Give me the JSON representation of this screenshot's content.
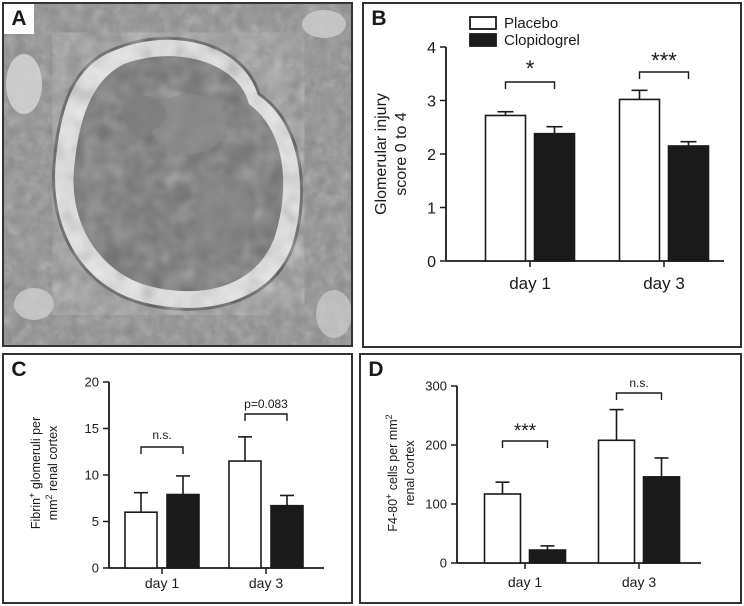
{
  "panels": [
    {
      "id": "A",
      "label": "A"
    },
    {
      "id": "B",
      "label": "B"
    },
    {
      "id": "C",
      "label": "C"
    },
    {
      "id": "D",
      "label": "D"
    }
  ],
  "legend": [
    "Placebo",
    "Clopidogrel"
  ],
  "colors": {
    "placebo": "#ffffff",
    "clopidogrel": "#1a1a1a",
    "axis": "#1a1a1a"
  },
  "image_description": "micrograph",
  "chart_data": [
    {
      "panel": "B",
      "type": "bar",
      "categories": [
        "day 1",
        "day 3"
      ],
      "series": [
        {
          "name": "Placebo",
          "values": [
            2.72,
            3.02
          ],
          "errors": [
            0.07,
            0.17
          ]
        },
        {
          "name": "Clopidogrel",
          "values": [
            2.38,
            2.15
          ],
          "errors": [
            0.13,
            0.08
          ]
        }
      ],
      "ylabel": [
        "Glomerular injury",
        "score 0 to 4"
      ],
      "ylim": [
        0,
        4
      ],
      "yticks": [
        "0",
        "1",
        "2",
        "3",
        "4"
      ],
      "legend_placement": "top-left",
      "annotations": [
        "*",
        "***"
      ]
    },
    {
      "panel": "C",
      "type": "bar",
      "categories": [
        "day 1",
        "day 3"
      ],
      "series": [
        {
          "name": "Placebo",
          "values": [
            6.0,
            11.5
          ],
          "errors": [
            2.1,
            2.6
          ]
        },
        {
          "name": "Clopidogrel",
          "values": [
            7.9,
            6.7
          ],
          "errors": [
            2.0,
            1.1
          ]
        }
      ],
      "ylabel_parts": [
        "Fibrin",
        "+",
        " glomeruli per",
        "mm",
        "2",
        " renal cortex"
      ],
      "ylim": [
        0,
        20
      ],
      "yticks": [
        "0",
        "5",
        "10",
        "15",
        "20"
      ],
      "annotations": [
        "n.s.",
        "p=0.083"
      ]
    },
    {
      "panel": "D",
      "type": "bar",
      "categories": [
        "day 1",
        "day 3"
      ],
      "series": [
        {
          "name": "Placebo",
          "values": [
            117,
            208
          ],
          "errors": [
            20,
            52
          ]
        },
        {
          "name": "Clopidogrel",
          "values": [
            22,
            146
          ],
          "errors": [
            7,
            32
          ]
        }
      ],
      "ylabel_parts": [
        "F4-80",
        "+",
        " cells per mm",
        "2",
        "renal cortex"
      ],
      "ylim": [
        0,
        300
      ],
      "yticks": [
        "0",
        "100",
        "200",
        "300"
      ],
      "annotations": [
        "***",
        "n.s."
      ]
    }
  ]
}
